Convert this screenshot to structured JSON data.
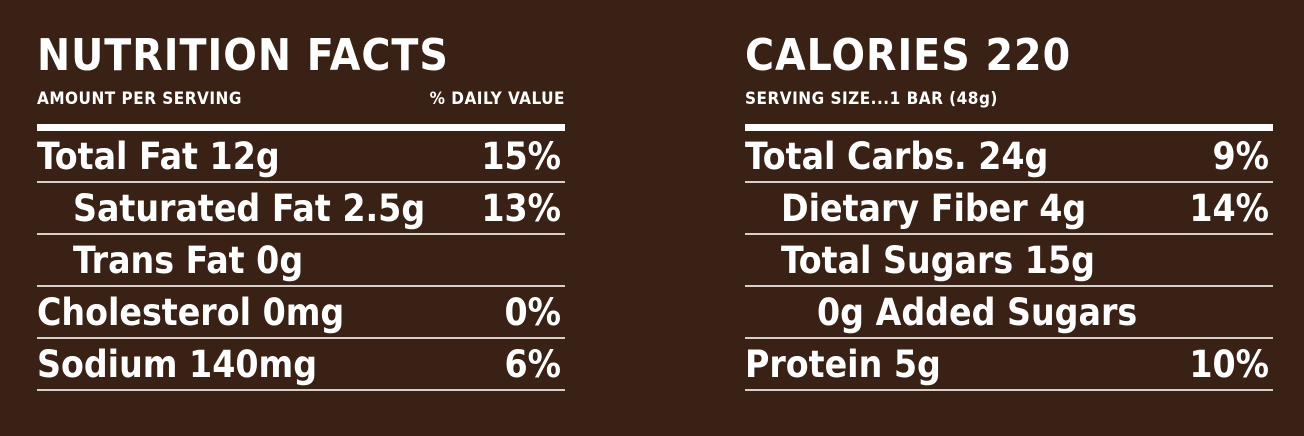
{
  "left": {
    "title": "NUTRITION FACTS",
    "amount_per_serving": "AMOUNT PER SERVING",
    "daily_value": "% DAILY VALUE",
    "rows": [
      {
        "label": "Total Fat 12g",
        "percent": "15%"
      },
      {
        "label": "Saturated Fat 2.5g",
        "percent": "13%"
      },
      {
        "label": "Trans Fat 0g",
        "percent": ""
      },
      {
        "label": "Cholesterol 0mg",
        "percent": "0%"
      },
      {
        "label": "Sodium 140mg",
        "percent": "6%"
      }
    ]
  },
  "right": {
    "title": "CALORIES 220",
    "serving_size": "SERVING SIZE...1 BAR (48g)",
    "rows": [
      {
        "label": "Total Carbs. 24g",
        "percent": "9%"
      },
      {
        "label": "Dietary Fiber 4g",
        "percent": "14%"
      },
      {
        "label": "Total Sugars 15g",
        "percent": ""
      },
      {
        "label": "0g Added Sugars",
        "percent": ""
      },
      {
        "label": "Protein 5g",
        "percent": "10%"
      }
    ]
  },
  "colors": {
    "background": "#3a2115",
    "text": "#ffffff"
  }
}
